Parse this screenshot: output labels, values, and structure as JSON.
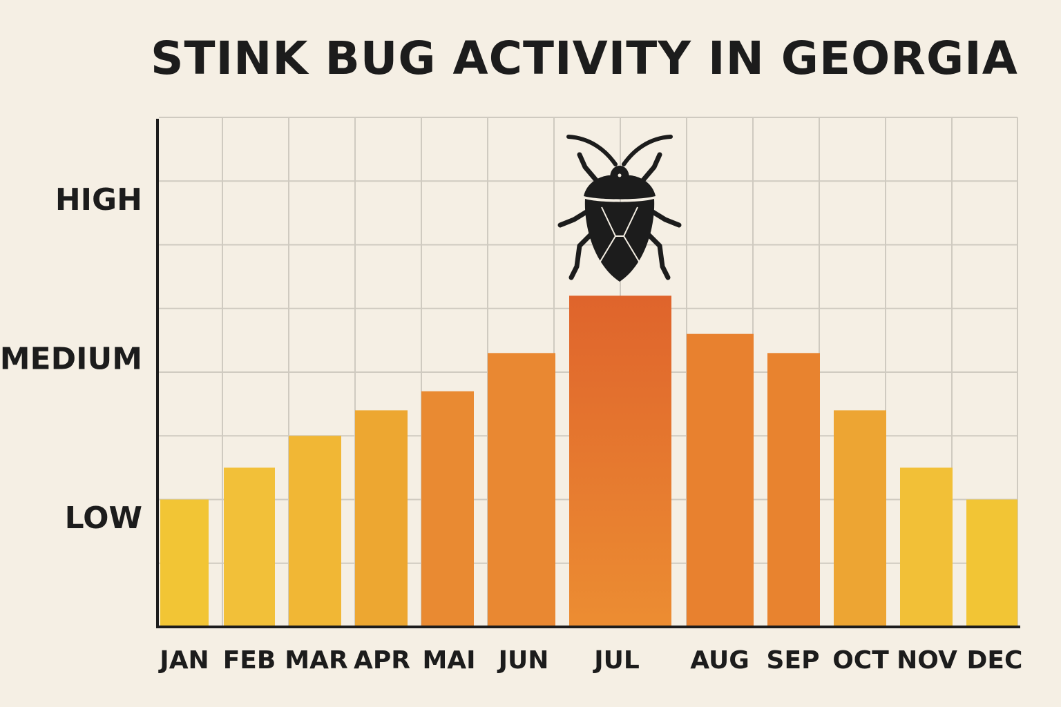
{
  "chart_data": {
    "type": "bar",
    "title": "STINK BUG ACTIVITY IN GEORGIA",
    "xlabel": "",
    "ylabel": "",
    "categories": [
      "JAN",
      "FEB",
      "MAR",
      "APR",
      "MAI",
      "JUN",
      "JUL",
      "AUG",
      "SEP",
      "OCT",
      "NOV",
      "DEC"
    ],
    "values": [
      0.2,
      0.25,
      0.3,
      0.34,
      0.37,
      0.43,
      0.52,
      0.46,
      0.43,
      0.34,
      0.25,
      0.2
    ],
    "y_tick_labels": [
      {
        "label": "LOW",
        "value": 0.17
      },
      {
        "label": "MEDIUM",
        "value": 0.42
      },
      {
        "label": "HIGH",
        "value": 0.67
      }
    ],
    "ylim": [
      0,
      0.8
    ],
    "grid": true,
    "colors": {
      "low": "#f2c535",
      "mid": "#eb8a33",
      "peak": "#e06a2c",
      "grid": "#cfcac0",
      "axis": "#1c1c1c",
      "background": "#f5efe4"
    },
    "annotation_icon": "stink-bug-icon",
    "annotation_category": "JUL"
  }
}
